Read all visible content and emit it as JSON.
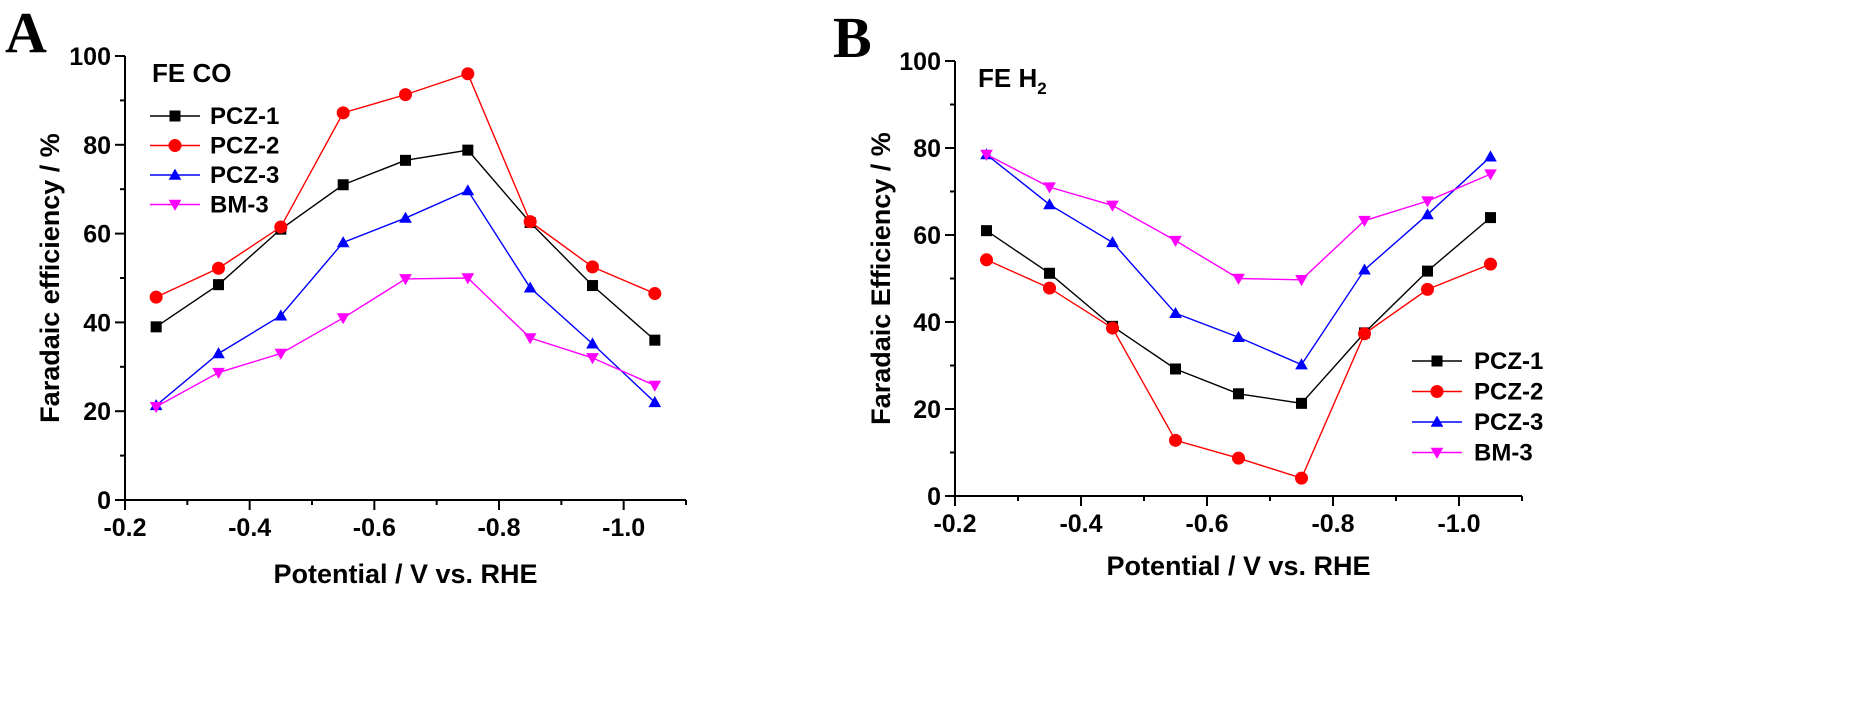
{
  "colors": {
    "PCZ-1": "#000000",
    "PCZ-2": "#ff0000",
    "PCZ-3": "#0000ff",
    "BM-3": "#ff00ff"
  },
  "markers": {
    "PCZ-1": "square",
    "PCZ-2": "circle",
    "PCZ-3": "triangle-up",
    "BM-3": "triangle-down"
  },
  "chart_data": [
    {
      "type": "line",
      "panel": "A",
      "title": "FE CO",
      "title_sub": "",
      "xlabel": "Potential / V vs. RHE",
      "ylabel": "Faradaic efficiency / %",
      "xlim": [
        -0.2,
        -1.1
      ],
      "ylim": [
        0,
        100
      ],
      "xticks": [
        -0.2,
        -0.4,
        -0.6,
        -0.8,
        -1.0
      ],
      "xtick_labels": [
        "-0.2",
        "-0.4",
        "-0.6",
        "-0.8",
        "-1.0"
      ],
      "yticks": [
        0,
        20,
        40,
        60,
        80,
        100
      ],
      "ytick_labels": [
        "0",
        "20",
        "40",
        "60",
        "80",
        "100"
      ],
      "legend_position": "upper-left",
      "x": [
        -0.25,
        -0.35,
        -0.45,
        -0.55,
        -0.65,
        -0.75,
        -0.85,
        -0.95,
        -1.05
      ],
      "series": [
        {
          "name": "PCZ-1",
          "values": [
            39,
            48.5,
            61,
            71,
            76.5,
            78.8,
            62.5,
            48.3,
            36
          ]
        },
        {
          "name": "PCZ-2",
          "values": [
            45.7,
            52.2,
            61.5,
            87.2,
            91.3,
            96,
            62.7,
            52.5,
            46.5
          ]
        },
        {
          "name": "PCZ-3",
          "values": [
            21.3,
            33,
            41.5,
            58,
            63.5,
            69.7,
            47.8,
            35.2,
            22
          ]
        },
        {
          "name": "BM-3",
          "values": [
            21,
            28.7,
            33,
            41,
            49.8,
            50,
            36.5,
            32,
            25.8
          ]
        }
      ]
    },
    {
      "type": "line",
      "panel": "B",
      "title": "FE H",
      "title_sub": "2",
      "xlabel": "Potential / V vs. RHE",
      "ylabel": "Faradaic Efficiency / %",
      "xlim": [
        -0.2,
        -1.1
      ],
      "ylim": [
        0,
        100
      ],
      "xticks": [
        -0.2,
        -0.4,
        -0.6,
        -0.8,
        -1.0
      ],
      "xtick_labels": [
        "-0.2",
        "-0.4",
        "-0.6",
        "-0.8",
        "-1.0"
      ],
      "yticks": [
        0,
        20,
        40,
        60,
        80,
        100
      ],
      "ytick_labels": [
        "0",
        "20",
        "40",
        "60",
        "80",
        "100"
      ],
      "legend_position": "lower-right",
      "x": [
        -0.25,
        -0.35,
        -0.45,
        -0.55,
        -0.65,
        -0.75,
        -0.85,
        -0.95,
        -1.05
      ],
      "series": [
        {
          "name": "PCZ-1",
          "values": [
            61,
            51.2,
            39,
            29.2,
            23.5,
            21.3,
            37.5,
            51.7,
            64
          ]
        },
        {
          "name": "PCZ-2",
          "values": [
            54.3,
            47.8,
            38.6,
            12.8,
            8.7,
            4.1,
            37.3,
            47.5,
            53.3
          ]
        },
        {
          "name": "PCZ-3",
          "values": [
            78.5,
            67,
            58.3,
            42,
            36.5,
            30.2,
            52,
            64.7,
            78
          ]
        },
        {
          "name": "BM-3",
          "values": [
            78.5,
            71,
            66.8,
            58.7,
            50,
            49.7,
            63.3,
            67.8,
            74
          ]
        }
      ]
    }
  ]
}
